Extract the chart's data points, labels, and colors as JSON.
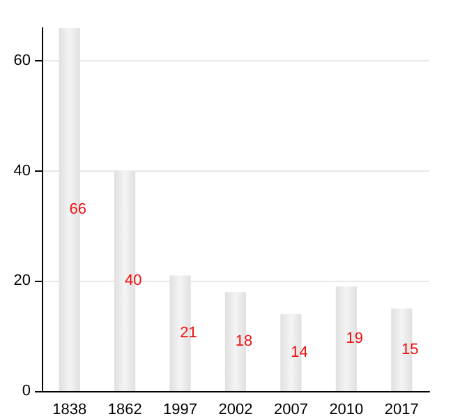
{
  "chart_data": {
    "type": "bar",
    "categories": [
      "1838",
      "1862",
      "1997",
      "2002",
      "2007",
      "2010",
      "2017"
    ],
    "values": [
      66,
      40,
      21,
      18,
      14,
      19,
      15
    ],
    "color": "#e0e0e0",
    "ylim": [
      0,
      66
    ],
    "yticks": [
      0,
      20,
      40,
      60
    ],
    "grid": "y",
    "data_labels": true
  }
}
